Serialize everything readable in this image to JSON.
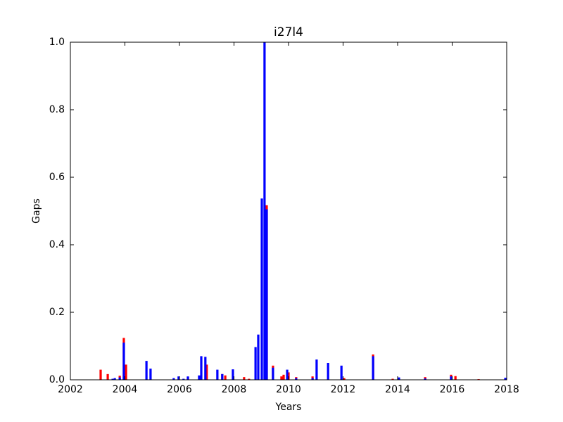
{
  "chart_data": {
    "type": "bar",
    "title": "i27l4",
    "x_label": "Years",
    "y_label": "Gaps",
    "xlim": [
      2002,
      2018
    ],
    "xticks": [
      2002,
      2004,
      2006,
      2008,
      2010,
      2012,
      2014,
      2016,
      2018
    ],
    "ylim": [
      0,
      1
    ],
    "yticks": [
      {
        "value": 0,
        "label": "0.0"
      },
      0.2,
      0.4,
      0.6,
      0.8,
      {
        "value": 1,
        "label": "1.0"
      }
    ],
    "grid": false,
    "series": [
      {
        "color": "#ff0000",
        "x": [
          2003.11,
          2003.37,
          2003.81,
          2003.96,
          2004.04,
          2006.31,
          2007.0,
          2007.57,
          2007.68,
          2008.37,
          2008.55,
          2009.2,
          2009.43,
          2009.74,
          2009.82,
          2010.0,
          2010.28,
          2010.88,
          2012.04,
          2013.1,
          2013.82,
          2015.01,
          2015.96,
          2016.12,
          2016.97
        ],
        "values": [
          0.03,
          0.017,
          0.012,
          0.124,
          0.045,
          0.008,
          0.045,
          0.017,
          0.013,
          0.008,
          0.003,
          0.517,
          0.042,
          0.01,
          0.015,
          0.022,
          0.008,
          0.01,
          0.005,
          0.075,
          0.003,
          0.008,
          0.015,
          0.011,
          0.002
        ]
      },
      {
        "color": "#0000ff",
        "x": [
          2003.55,
          2003.63,
          2003.81,
          2003.96,
          2004.79,
          2004.94,
          2005.79,
          2005.97,
          2006.15,
          2006.31,
          2006.72,
          2006.8,
          2006.95,
          2007.39,
          2007.57,
          2007.96,
          2008.79,
          2008.89,
          2009.02,
          2009.12,
          2009.2,
          2009.43,
          2009.95,
          2010.28,
          2010.88,
          2011.03,
          2011.45,
          2011.94,
          2013.1,
          2014.05,
          2015.01,
          2015.96,
          2017.95
        ],
        "values": [
          0.003,
          0.005,
          0.007,
          0.11,
          0.056,
          0.033,
          0.005,
          0.01,
          0.003,
          0.01,
          0.013,
          0.07,
          0.068,
          0.03,
          0.017,
          0.031,
          0.097,
          0.134,
          0.537,
          1.0,
          0.505,
          0.036,
          0.03,
          0.005,
          0.005,
          0.06,
          0.05,
          0.042,
          0.07,
          0.007,
          0.004,
          0.01,
          0.006
        ]
      }
    ]
  }
}
